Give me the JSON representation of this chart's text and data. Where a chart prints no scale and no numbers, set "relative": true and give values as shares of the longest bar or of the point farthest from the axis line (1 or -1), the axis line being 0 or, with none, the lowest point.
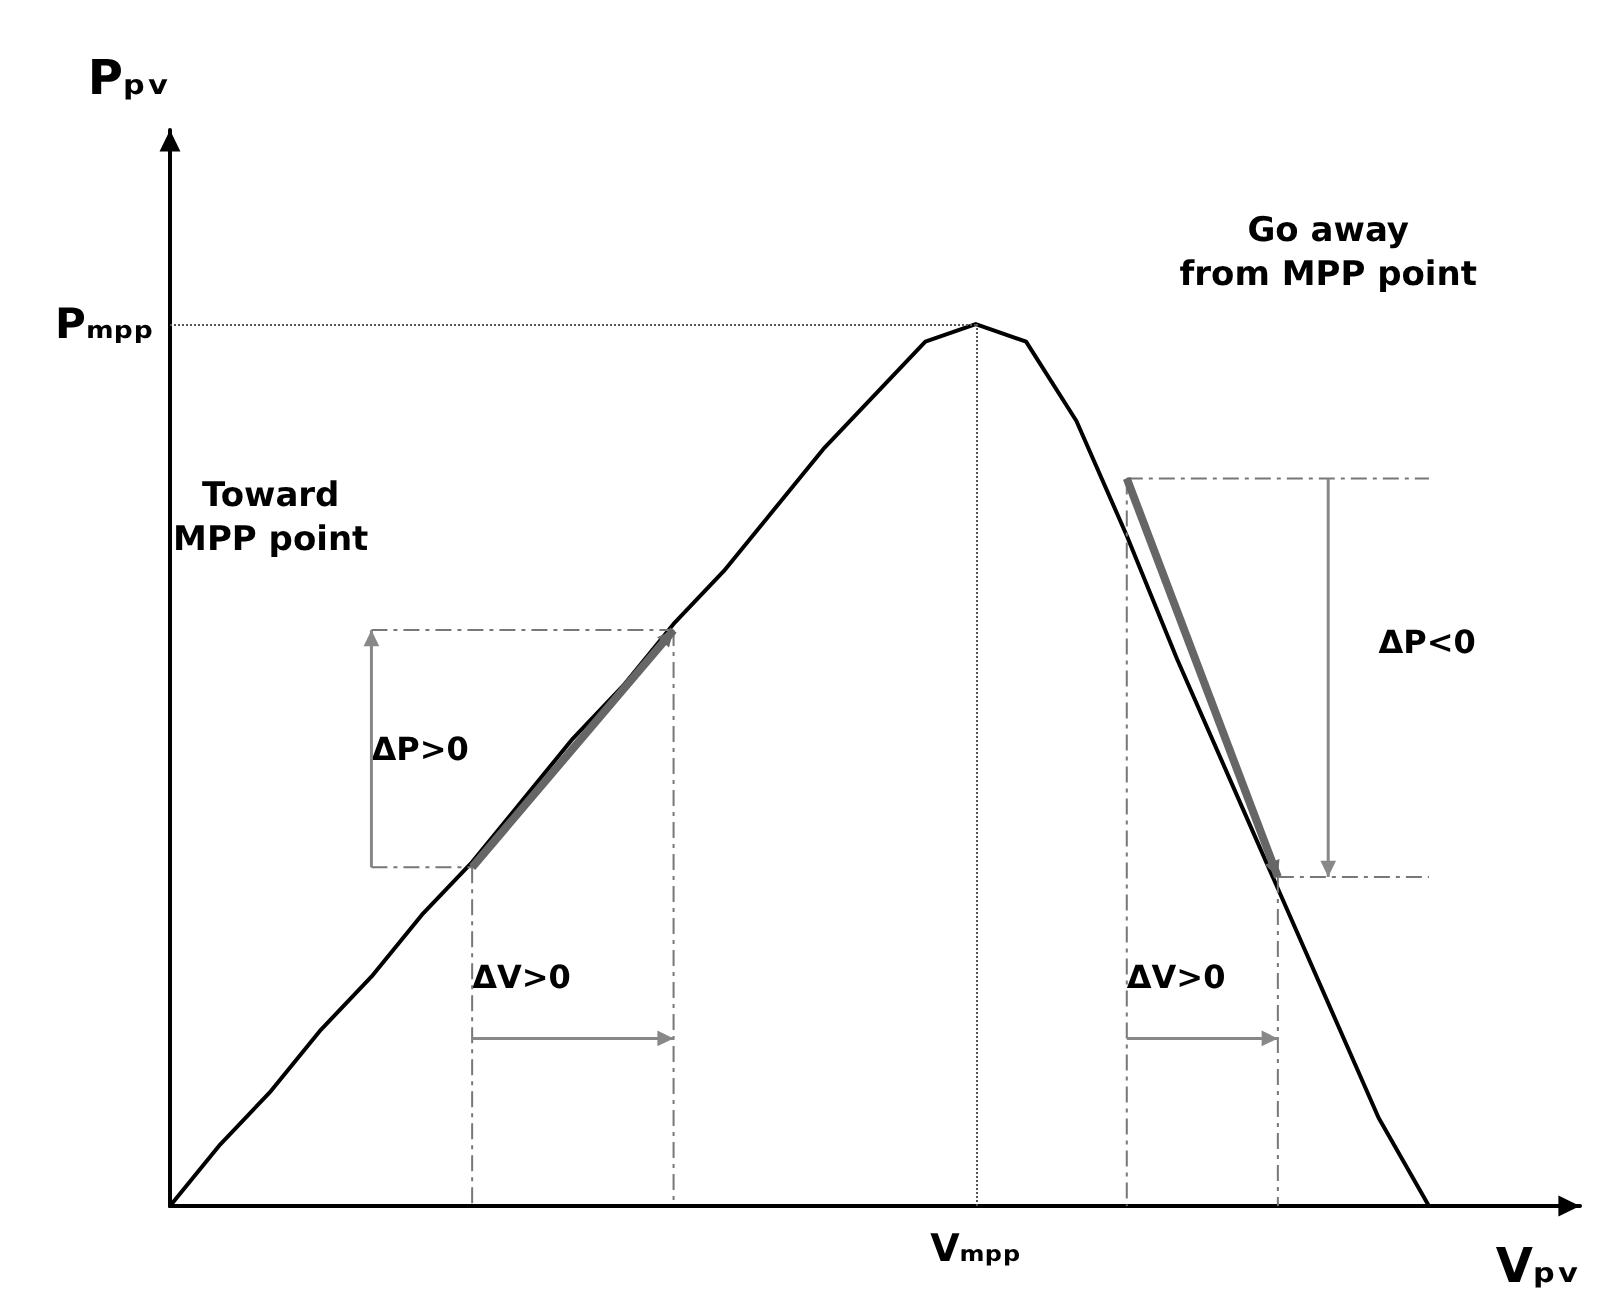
{
  "chart_data": {
    "type": "line",
    "relative": true,
    "xlabel": "Vₚᵥ",
    "ylabel": "Pₚᵥ",
    "categories": [
      null,
      null,
      null,
      null,
      null,
      null,
      null,
      null,
      null,
      null,
      null,
      null,
      null,
      null,
      null,
      null,
      null,
      null,
      null,
      null,
      null,
      null,
      null,
      null,
      null,
      null,
      null,
      null,
      null
    ],
    "series": [
      {
        "color": "#000000",
        "values": [
          0,
          0.07,
          0.13,
          0.2,
          0.26,
          0.33,
          0.39,
          0.46,
          0.53,
          0.59,
          0.66,
          0.72,
          0.79,
          0.86,
          0.92,
          0.98,
          1,
          0.98,
          0.89,
          0.76,
          0.62,
          0.49,
          0.36,
          0.23,
          0.1,
          0,
          null,
          null,
          null
        ]
      }
    ],
    "ref_lines": [
      {
        "axis": "y",
        "value": 1,
        "label": "Pₘₚₚ",
        "line_style": "dotted",
        "color": "#555555"
      },
      {
        "axis": "x",
        "label": "Vₘₚₚ",
        "line_style": "dotted",
        "color": "#555555"
      }
    ],
    "annotations": [
      "Toward\nMPP point",
      "Go away\nfrom MPP point",
      "ΔP>0",
      "ΔV>0",
      "ΔP<0",
      "ΔV>0"
    ],
    "grid": false,
    "marker": "none",
    "line_style": "solid"
  }
}
